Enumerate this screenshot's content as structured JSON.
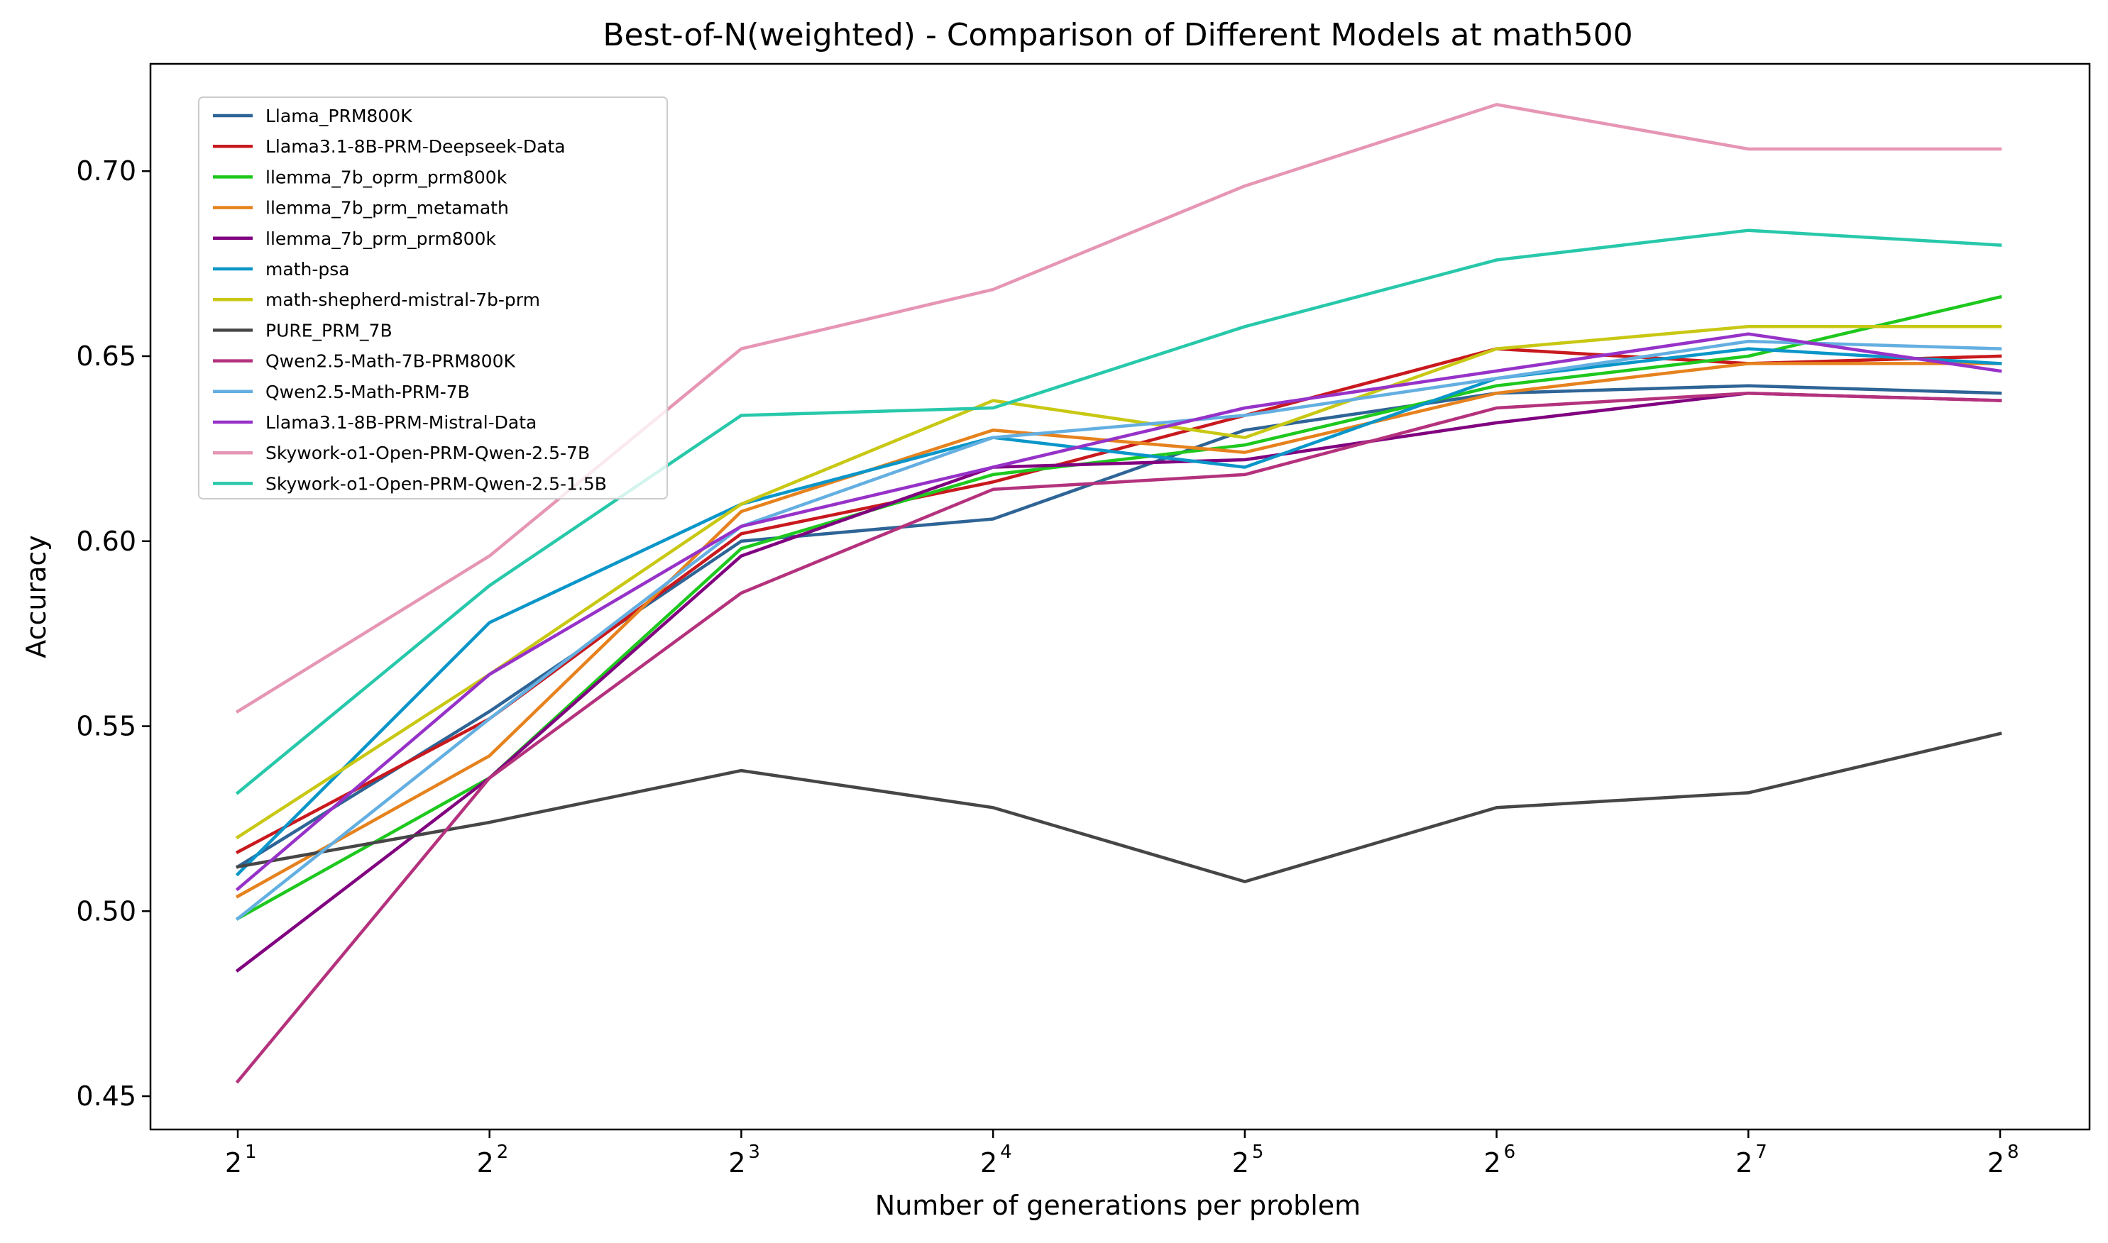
{
  "chart_data": {
    "type": "line",
    "title": "Best-of-N(weighted) - Comparison of Different Models at math500",
    "xlabel": "Number of generations per problem",
    "ylabel": "Accuracy",
    "x_scale": "log2",
    "x": [
      2,
      4,
      8,
      16,
      32,
      64,
      128,
      256
    ],
    "x_tick_labels": [
      {
        "base": "2",
        "exp": "1"
      },
      {
        "base": "2",
        "exp": "2"
      },
      {
        "base": "2",
        "exp": "3"
      },
      {
        "base": "2",
        "exp": "4"
      },
      {
        "base": "2",
        "exp": "5"
      },
      {
        "base": "2",
        "exp": "6"
      },
      {
        "base": "2",
        "exp": "7"
      },
      {
        "base": "2",
        "exp": "8"
      }
    ],
    "ylim": [
      0.441,
      0.729
    ],
    "y_ticks": [
      0.45,
      0.5,
      0.55,
      0.6,
      0.65,
      0.7
    ],
    "y_tick_labels": [
      "0.45",
      "0.50",
      "0.55",
      "0.60",
      "0.65",
      "0.70"
    ],
    "grid": false,
    "legend_position": "upper-left",
    "series": [
      {
        "name": "Llama_PRM800K",
        "color": "#2e6496",
        "values": [
          0.512,
          0.554,
          0.6,
          0.606,
          0.63,
          0.64,
          0.642,
          0.64
        ]
      },
      {
        "name": "Llama3.1-8B-PRM-Deepseek-Data",
        "color": "#c8191e",
        "values": [
          0.516,
          0.552,
          0.602,
          0.616,
          0.634,
          0.652,
          0.648,
          0.65
        ]
      },
      {
        "name": "llemma_7b_oprm_prm800k",
        "color": "#1ec81e",
        "values": [
          0.498,
          0.536,
          0.598,
          0.618,
          0.626,
          0.642,
          0.65,
          0.666
        ]
      },
      {
        "name": "llemma_7b_prm_metamath",
        "color": "#e6821e",
        "values": [
          0.504,
          0.542,
          0.608,
          0.63,
          0.624,
          0.64,
          0.648,
          0.648
        ]
      },
      {
        "name": "llemma_7b_prm_prm800k",
        "color": "#800080",
        "values": [
          0.484,
          0.536,
          0.596,
          0.62,
          0.622,
          0.632,
          0.64,
          0.638
        ]
      },
      {
        "name": "math-psa",
        "color": "#0a96c8",
        "values": [
          0.51,
          0.578,
          0.61,
          0.628,
          0.62,
          0.644,
          0.652,
          0.648
        ]
      },
      {
        "name": "math-shepherd-mistral-7b-prm",
        "color": "#c8c814",
        "values": [
          0.52,
          0.564,
          0.61,
          0.638,
          0.628,
          0.652,
          0.658,
          0.658
        ]
      },
      {
        "name": "PURE_PRM_7B",
        "color": "#464646",
        "values": [
          0.512,
          0.524,
          0.538,
          0.528,
          0.508,
          0.528,
          0.532,
          0.548
        ]
      },
      {
        "name": "Qwen2.5-Math-7B-PRM800K",
        "color": "#b4327d",
        "values": [
          0.454,
          0.536,
          0.586,
          0.614,
          0.618,
          0.636,
          0.64,
          0.638
        ]
      },
      {
        "name": "Qwen2.5-Math-PRM-7B",
        "color": "#64afe1",
        "values": [
          0.498,
          0.552,
          0.604,
          0.628,
          0.634,
          0.644,
          0.654,
          0.652
        ]
      },
      {
        "name": "Llama3.1-8B-PRM-Mistral-Data",
        "color": "#9632c8",
        "values": [
          0.506,
          0.564,
          0.604,
          0.62,
          0.636,
          0.646,
          0.656,
          0.646
        ]
      },
      {
        "name": "Skywork-o1-Open-PRM-Qwen-2.5-7B",
        "color": "#e696b4",
        "values": [
          0.554,
          0.596,
          0.652,
          0.668,
          0.696,
          0.718,
          0.706,
          0.706
        ]
      },
      {
        "name": "Skywork-o1-Open-PRM-Qwen-2.5-1.5B",
        "color": "#28c8aa",
        "values": [
          0.532,
          0.588,
          0.634,
          0.636,
          0.658,
          0.676,
          0.684,
          0.68
        ]
      }
    ]
  }
}
